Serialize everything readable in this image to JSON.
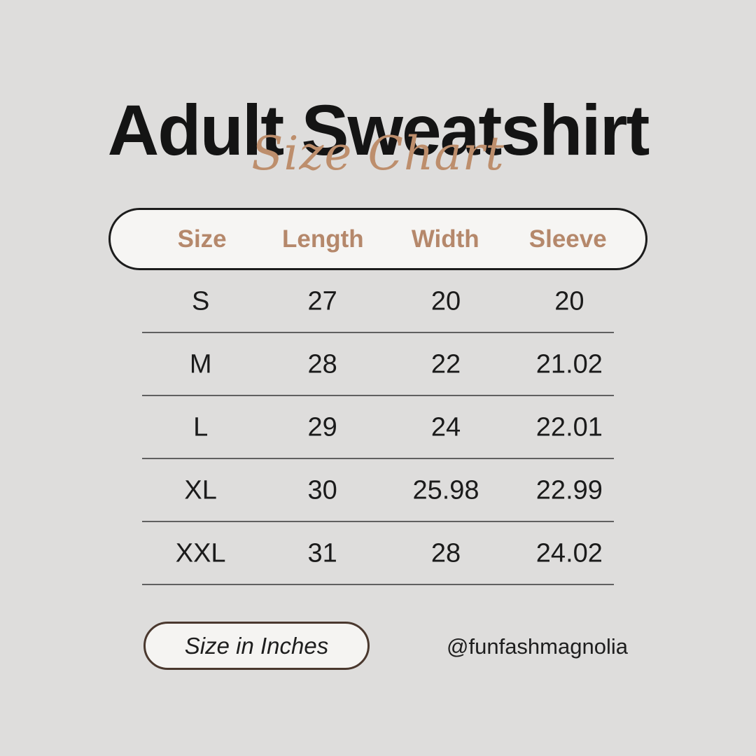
{
  "header": {
    "title": "Adult Sweatshirt",
    "subtitle": "Size Chart"
  },
  "chart_data": {
    "type": "table",
    "title": "Adult Sweatshirt",
    "subtitle": "Size Chart",
    "columns": [
      "Size",
      "Length",
      "Width",
      "Sleeve"
    ],
    "rows": [
      [
        "S",
        "27",
        "20",
        "20"
      ],
      [
        "M",
        "28",
        "22",
        "21.02"
      ],
      [
        "L",
        "29",
        "24",
        "22.01"
      ],
      [
        "XL",
        "30",
        "25.98",
        "22.99"
      ],
      [
        "XXL",
        "31",
        "28",
        "24.02"
      ]
    ],
    "units_note": "Size in Inches"
  },
  "footer": {
    "note": "Size in Inches",
    "handle": "@funfashmagnolia"
  },
  "colors": {
    "background": "#dedddc",
    "title_text": "#141414",
    "accent_tan": "#b5886b",
    "script_tan": "#bd8e6c",
    "pill_background": "#f6f5f3",
    "pill_border": "#1c1c1c",
    "divider": "#606060",
    "note_pill_border": "#4a382e",
    "body_text": "#1b1b1b"
  }
}
